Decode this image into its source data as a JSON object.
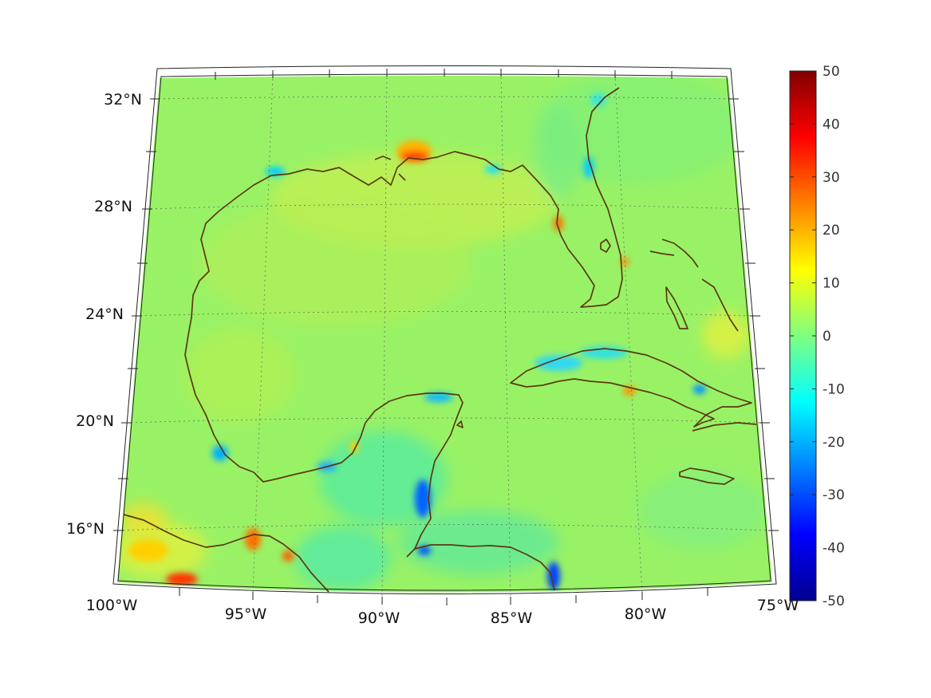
{
  "map": {
    "projection": "conic",
    "longitude_labels": [
      "100°W",
      "95°W",
      "90°W",
      "85°W",
      "80°W",
      "75°W"
    ],
    "latitude_labels": [
      "32°N",
      "28°N",
      "24°N",
      "20°N",
      "16°N"
    ],
    "grid": true
  },
  "colorbar": {
    "colormap": "jet",
    "range": [
      -50,
      50
    ],
    "ticks": [
      "50",
      "40",
      "30",
      "20",
      "10",
      "0",
      "-10",
      "-20",
      "-30",
      "-40",
      "-50"
    ]
  },
  "colors": {
    "background": "#99f266",
    "coastline": "#5a3a12",
    "graticule": "#555555"
  }
}
